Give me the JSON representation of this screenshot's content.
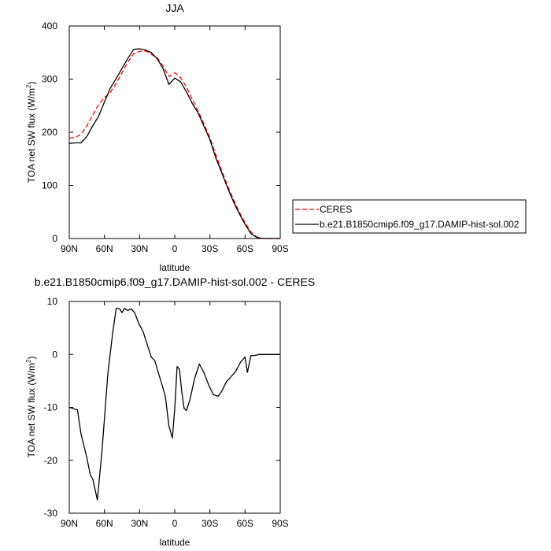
{
  "chart_data": [
    {
      "type": "line",
      "title": "JJA",
      "xlabel": "latitude",
      "ylabel": "TOA net SW flux (W/m",
      "ylabel_sup": "2",
      "ylabel_tail": ")",
      "xlim": [
        90,
        -90
      ],
      "ylim": [
        0,
        400
      ],
      "x_ticks": [
        90,
        60,
        30,
        0,
        -30,
        -60,
        -90
      ],
      "x_tick_labels": [
        "90N",
        "60N",
        "30N",
        "0",
        "30S",
        "60S",
        "90S"
      ],
      "y_ticks": [
        0,
        100,
        200,
        300,
        400
      ],
      "y_tick_labels": [
        "0",
        "100",
        "200",
        "300",
        "400"
      ],
      "grid": false,
      "legend_position": "right",
      "series": [
        {
          "name": "CERES",
          "color": "#ff0000",
          "dash": "dashed",
          "points": [
            [
              90,
              189
            ],
            [
              85,
              190
            ],
            [
              80,
              196
            ],
            [
              75,
              212
            ],
            [
              70,
              232
            ],
            [
              65,
              252
            ],
            [
              60,
              265
            ],
            [
              55,
              275
            ],
            [
              50,
              292
            ],
            [
              45,
              312
            ],
            [
              40,
              332
            ],
            [
              35,
              348
            ],
            [
              30,
              352
            ],
            [
              25,
              353
            ],
            [
              20,
              347
            ],
            [
              15,
              340
            ],
            [
              10,
              325
            ],
            [
              5,
              305
            ],
            [
              0,
              312
            ],
            [
              -5,
              303
            ],
            [
              -10,
              285
            ],
            [
              -15,
              262
            ],
            [
              -20,
              240
            ],
            [
              -25,
              215
            ],
            [
              -30,
              190
            ],
            [
              -35,
              158
            ],
            [
              -40,
              128
            ],
            [
              -45,
              100
            ],
            [
              -50,
              74
            ],
            [
              -55,
              50
            ],
            [
              -60,
              30
            ],
            [
              -65,
              12
            ],
            [
              -70,
              3
            ],
            [
              -75,
              0
            ],
            [
              -80,
              0
            ],
            [
              -85,
              0
            ],
            [
              -90,
              0
            ]
          ]
        },
        {
          "name": "b.e21.B1850cmip6.f09_g17.DAMIP-hist-sol.002",
          "color": "#000000",
          "dash": "solid",
          "points": [
            [
              90,
              179
            ],
            [
              85,
              180
            ],
            [
              80,
              180
            ],
            [
              75,
              192
            ],
            [
              70,
              212
            ],
            [
              65,
              230
            ],
            [
              60,
              257
            ],
            [
              55,
              283
            ],
            [
              50,
              301
            ],
            [
              45,
              320
            ],
            [
              40,
              339
            ],
            [
              35,
              356
            ],
            [
              30,
              357
            ],
            [
              25,
              355
            ],
            [
              20,
              350
            ],
            [
              15,
              338
            ],
            [
              10,
              320
            ],
            [
              5,
              290
            ],
            [
              0,
              302
            ],
            [
              -5,
              295
            ],
            [
              -10,
              276
            ],
            [
              -15,
              254
            ],
            [
              -20,
              236
            ],
            [
              -25,
              211
            ],
            [
              -30,
              186
            ],
            [
              -35,
              152
            ],
            [
              -40,
              124
            ],
            [
              -45,
              96
            ],
            [
              -50,
              70
            ],
            [
              -55,
              47
            ],
            [
              -60,
              27
            ],
            [
              -65,
              9
            ],
            [
              -70,
              2
            ],
            [
              -75,
              0
            ],
            [
              -80,
              0
            ],
            [
              -85,
              0
            ],
            [
              -90,
              0
            ]
          ]
        }
      ]
    },
    {
      "type": "line",
      "title": "b.e21.B1850cmip6.f09_g17.DAMIP-hist-sol.002 - CERES",
      "xlabel": "latitude",
      "ylabel": "TOA net SW flux (W/m",
      "ylabel_sup": "2",
      "ylabel_tail": ")",
      "xlim": [
        90,
        -90
      ],
      "ylim": [
        -30,
        10
      ],
      "x_ticks": [
        90,
        60,
        30,
        0,
        -30,
        -60,
        -90
      ],
      "x_tick_labels": [
        "90N",
        "60N",
        "30N",
        "0",
        "30S",
        "60S",
        "90S"
      ],
      "y_ticks": [
        -30,
        -20,
        -10,
        0,
        10
      ],
      "y_tick_labels": [
        "-30",
        "-20",
        "-10",
        "0",
        "10"
      ],
      "grid": false,
      "series": [
        {
          "color": "#000000",
          "dash": "solid",
          "points": [
            [
              90,
              -10
            ],
            [
              87,
              -10.2
            ],
            [
              83,
              -10.5
            ],
            [
              80,
              -15
            ],
            [
              75,
              -19.5
            ],
            [
              72,
              -22.8
            ],
            [
              70,
              -23.5
            ],
            [
              66,
              -27.5
            ],
            [
              62,
              -18
            ],
            [
              57,
              -3.5
            ],
            [
              53,
              4
            ],
            [
              50,
              8.7
            ],
            [
              47,
              8.6
            ],
            [
              45,
              7.9
            ],
            [
              43,
              8.7
            ],
            [
              40,
              8.3
            ],
            [
              37,
              8.6
            ],
            [
              34,
              7.8
            ],
            [
              31,
              6.0
            ],
            [
              27,
              4.3
            ],
            [
              23,
              1.5
            ],
            [
              20,
              -0.5
            ],
            [
              17,
              -1.2
            ],
            [
              14,
              -3.5
            ],
            [
              11,
              -5.6
            ],
            [
              8,
              -8.0
            ],
            [
              5,
              -13.5
            ],
            [
              2,
              -15.8
            ],
            [
              0,
              -10.2
            ],
            [
              -2,
              -2.3
            ],
            [
              -4,
              -2.8
            ],
            [
              -6,
              -7.0
            ],
            [
              -8,
              -10.2
            ],
            [
              -10,
              -10.6
            ],
            [
              -13,
              -8.5
            ],
            [
              -17,
              -4.5
            ],
            [
              -21,
              -1.8
            ],
            [
              -25,
              -3.5
            ],
            [
              -29,
              -5.8
            ],
            [
              -33,
              -7.6
            ],
            [
              -37,
              -7.9
            ],
            [
              -40,
              -7.0
            ],
            [
              -44,
              -5.2
            ],
            [
              -48,
              -4.2
            ],
            [
              -52,
              -3.2
            ],
            [
              -56,
              -1.5
            ],
            [
              -60,
              -0.5
            ],
            [
              -62,
              -3.4
            ],
            [
              -65,
              -0.2
            ],
            [
              -68,
              -0.2
            ],
            [
              -72,
              0
            ],
            [
              -76,
              0
            ],
            [
              -80,
              0
            ],
            [
              -84,
              0
            ],
            [
              -90,
              0
            ]
          ]
        }
      ]
    }
  ]
}
